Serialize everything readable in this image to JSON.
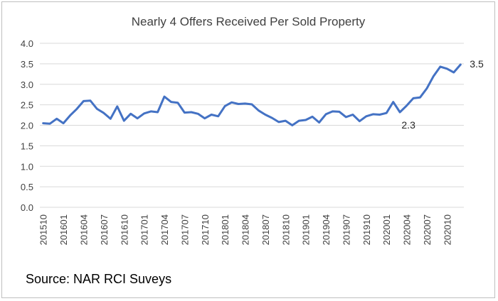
{
  "chart_data": {
    "type": "line",
    "title": "Nearly 4 Offers Received Per Sold Property",
    "xlabel": "",
    "ylabel": "",
    "ylim": [
      0,
      4
    ],
    "yticks": [
      "0.0",
      "0.5",
      "1.0",
      "1.5",
      "2.0",
      "2.5",
      "3.0",
      "3.5",
      "4.0"
    ],
    "x_tick_labels": [
      "201510",
      "201601",
      "201604",
      "201607",
      "201610",
      "201701",
      "201704",
      "201707",
      "201710",
      "201801",
      "201804",
      "201807",
      "201810",
      "201901",
      "201904",
      "201907",
      "201910",
      "202001",
      "202004",
      "202007",
      "202010"
    ],
    "grid": "horizontal",
    "line_color": "#4472c4",
    "x": [
      "201510",
      "201511",
      "201512",
      "201601",
      "201602",
      "201603",
      "201604",
      "201605",
      "201606",
      "201607",
      "201608",
      "201609",
      "201610",
      "201611",
      "201612",
      "201701",
      "201702",
      "201703",
      "201704",
      "201705",
      "201706",
      "201707",
      "201708",
      "201709",
      "201710",
      "201711",
      "201712",
      "201801",
      "201802",
      "201803",
      "201804",
      "201805",
      "201806",
      "201807",
      "201808",
      "201809",
      "201810",
      "201811",
      "201812",
      "201901",
      "201902",
      "201903",
      "201904",
      "201905",
      "201906",
      "201907",
      "201908",
      "201909",
      "201910",
      "201911",
      "201912",
      "202001",
      "202002",
      "202003",
      "202004",
      "202005",
      "202006",
      "202007",
      "202008",
      "202009",
      "202010",
      "202011",
      "202012"
    ],
    "series": [
      {
        "values": [
          2.05,
          2.04,
          2.16,
          2.05,
          2.24,
          2.4,
          2.59,
          2.6,
          2.4,
          2.3,
          2.16,
          2.46,
          2.11,
          2.28,
          2.17,
          2.29,
          2.34,
          2.32,
          2.7,
          2.57,
          2.55,
          2.31,
          2.32,
          2.28,
          2.17,
          2.26,
          2.22,
          2.47,
          2.56,
          2.52,
          2.53,
          2.51,
          2.36,
          2.26,
          2.18,
          2.08,
          2.11,
          2.0,
          2.11,
          2.13,
          2.21,
          2.07,
          2.27,
          2.34,
          2.33,
          2.2,
          2.26,
          2.1,
          2.22,
          2.27,
          2.26,
          2.3,
          2.57,
          2.32,
          2.48,
          2.66,
          2.68,
          2.9,
          3.2,
          3.43,
          3.38,
          3.29,
          3.48
        ]
      }
    ],
    "annotations": [
      {
        "text": "3.5",
        "x": "202012",
        "y": 3.48
      },
      {
        "text": "2.3",
        "x": "202003",
        "y": 2.32
      }
    ]
  },
  "footer": {
    "source": "Source: NAR RCI Suveys"
  }
}
